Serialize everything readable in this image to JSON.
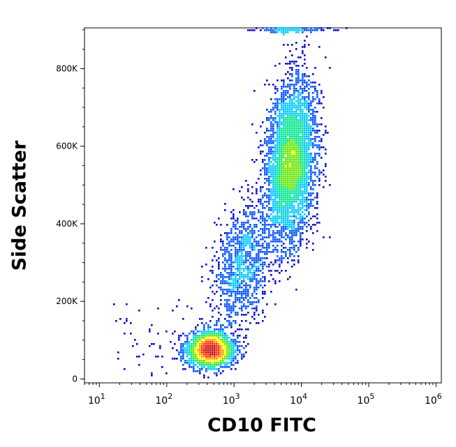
{
  "chart_data": {
    "type": "scatter",
    "subtype": "flow-cytometry-density-dot-plot",
    "xlabel": "CD10 FITC",
    "ylabel": "Side Scatter",
    "x_scale": "log",
    "xlim": [
      6,
      1200000
    ],
    "ylim": [
      -10000,
      905000
    ],
    "x_ticks": [
      {
        "value": 10,
        "base": "10",
        "exp": "1"
      },
      {
        "value": 100,
        "base": "10",
        "exp": "2"
      },
      {
        "value": 1000,
        "base": "10",
        "exp": "3"
      },
      {
        "value": 10000,
        "base": "10",
        "exp": "4"
      },
      {
        "value": 100000,
        "base": "10",
        "exp": "5"
      },
      {
        "value": 1000000,
        "base": "10",
        "exp": "6"
      }
    ],
    "y_ticks": [
      {
        "value": 0,
        "label": "0"
      },
      {
        "value": 200000,
        "label": "200K"
      },
      {
        "value": 400000,
        "label": "400K"
      },
      {
        "value": 600000,
        "label": "600K"
      },
      {
        "value": 800000,
        "label": "800K"
      }
    ],
    "populations": [
      {
        "name": "CD10-negative low-SSC cluster",
        "center_x": 450,
        "center_y": 75000,
        "log_spread_x": 0.17,
        "spread_y": 22000,
        "count": 2600,
        "peak_density": "high"
      },
      {
        "name": "bridge population",
        "center_x": 1400,
        "center_y": 300000,
        "log_spread_x": 0.22,
        "spread_y": 75000,
        "count": 1200,
        "peak_density": "low"
      },
      {
        "name": "CD10-positive high-SSC population",
        "center_x": 7000,
        "center_y": 560000,
        "log_spread_x": 0.18,
        "spread_y": 100000,
        "count": 4200,
        "peak_density": "medium"
      },
      {
        "name": "saturated SSC events",
        "center_x": 7000,
        "center_y": 900000,
        "log_spread_x": 0.25,
        "spread_y": 3000,
        "count": 250,
        "peak_density": "low"
      }
    ],
    "color_scale": [
      "#0000c8",
      "#0050ff",
      "#00c8ff",
      "#00e68c",
      "#64e600",
      "#ffff00",
      "#ff9600",
      "#ff2800",
      "#c80000"
    ],
    "grid": false,
    "legend": "none"
  }
}
